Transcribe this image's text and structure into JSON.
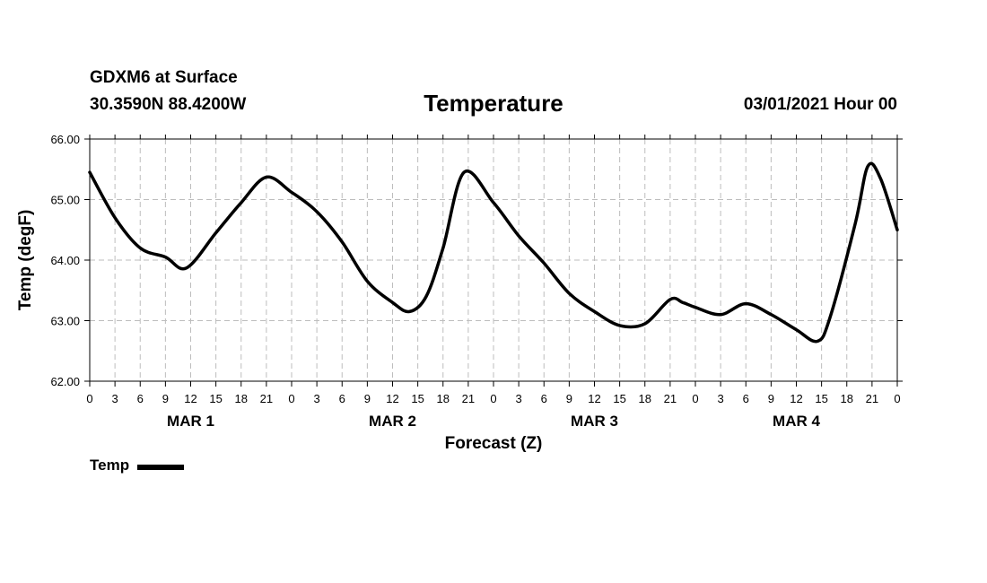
{
  "header": {
    "station": "GDXM6 at Surface",
    "coords": "30.3590N 88.4200W",
    "date": "03/01/2021 Hour 00"
  },
  "chart_data": {
    "type": "line",
    "title": "Temperature",
    "xlabel": "Forecast (Z)",
    "ylabel": "Temp (degF)",
    "ylim": [
      62.0,
      66.0
    ],
    "yticks": [
      "62.00",
      "63.00",
      "64.00",
      "65.00",
      "66.00"
    ],
    "xlim": [
      0,
      96
    ],
    "xtick_labels": [
      "0",
      "3",
      "6",
      "9",
      "12",
      "15",
      "18",
      "21",
      "0",
      "3",
      "6",
      "9",
      "12",
      "15",
      "18",
      "21",
      "0",
      "3",
      "6",
      "9",
      "12",
      "15",
      "18",
      "21",
      "0",
      "3",
      "6",
      "9",
      "12",
      "15",
      "18",
      "21",
      "0"
    ],
    "day_labels": [
      {
        "label": "MAR 1",
        "center_hour": 12
      },
      {
        "label": "MAR 2",
        "center_hour": 36
      },
      {
        "label": "MAR 3",
        "center_hour": 60
      },
      {
        "label": "MAR 4",
        "center_hour": 84
      }
    ],
    "grid": true,
    "legend": "bottom-left",
    "series": [
      {
        "name": "Temp",
        "color": "#000000",
        "x": [
          0,
          3,
          6,
          9,
          11.5,
          15,
          18,
          21,
          24,
          27,
          30,
          33,
          36,
          38,
          40,
          42,
          44.5,
          48,
          51,
          54,
          57,
          60,
          63,
          66,
          69,
          70.5,
          72,
          75,
          78,
          81,
          84,
          86.5,
          88,
          91,
          92.5,
          94,
          96
        ],
        "values": [
          65.45,
          64.7,
          64.2,
          64.05,
          63.87,
          64.45,
          64.95,
          65.37,
          65.12,
          64.8,
          64.3,
          63.65,
          63.3,
          63.15,
          63.4,
          64.2,
          65.45,
          64.95,
          64.4,
          63.95,
          63.45,
          63.15,
          62.92,
          62.95,
          63.35,
          63.3,
          63.22,
          63.1,
          63.28,
          63.1,
          62.85,
          62.66,
          63.05,
          64.6,
          65.55,
          65.35,
          64.5
        ]
      }
    ]
  }
}
